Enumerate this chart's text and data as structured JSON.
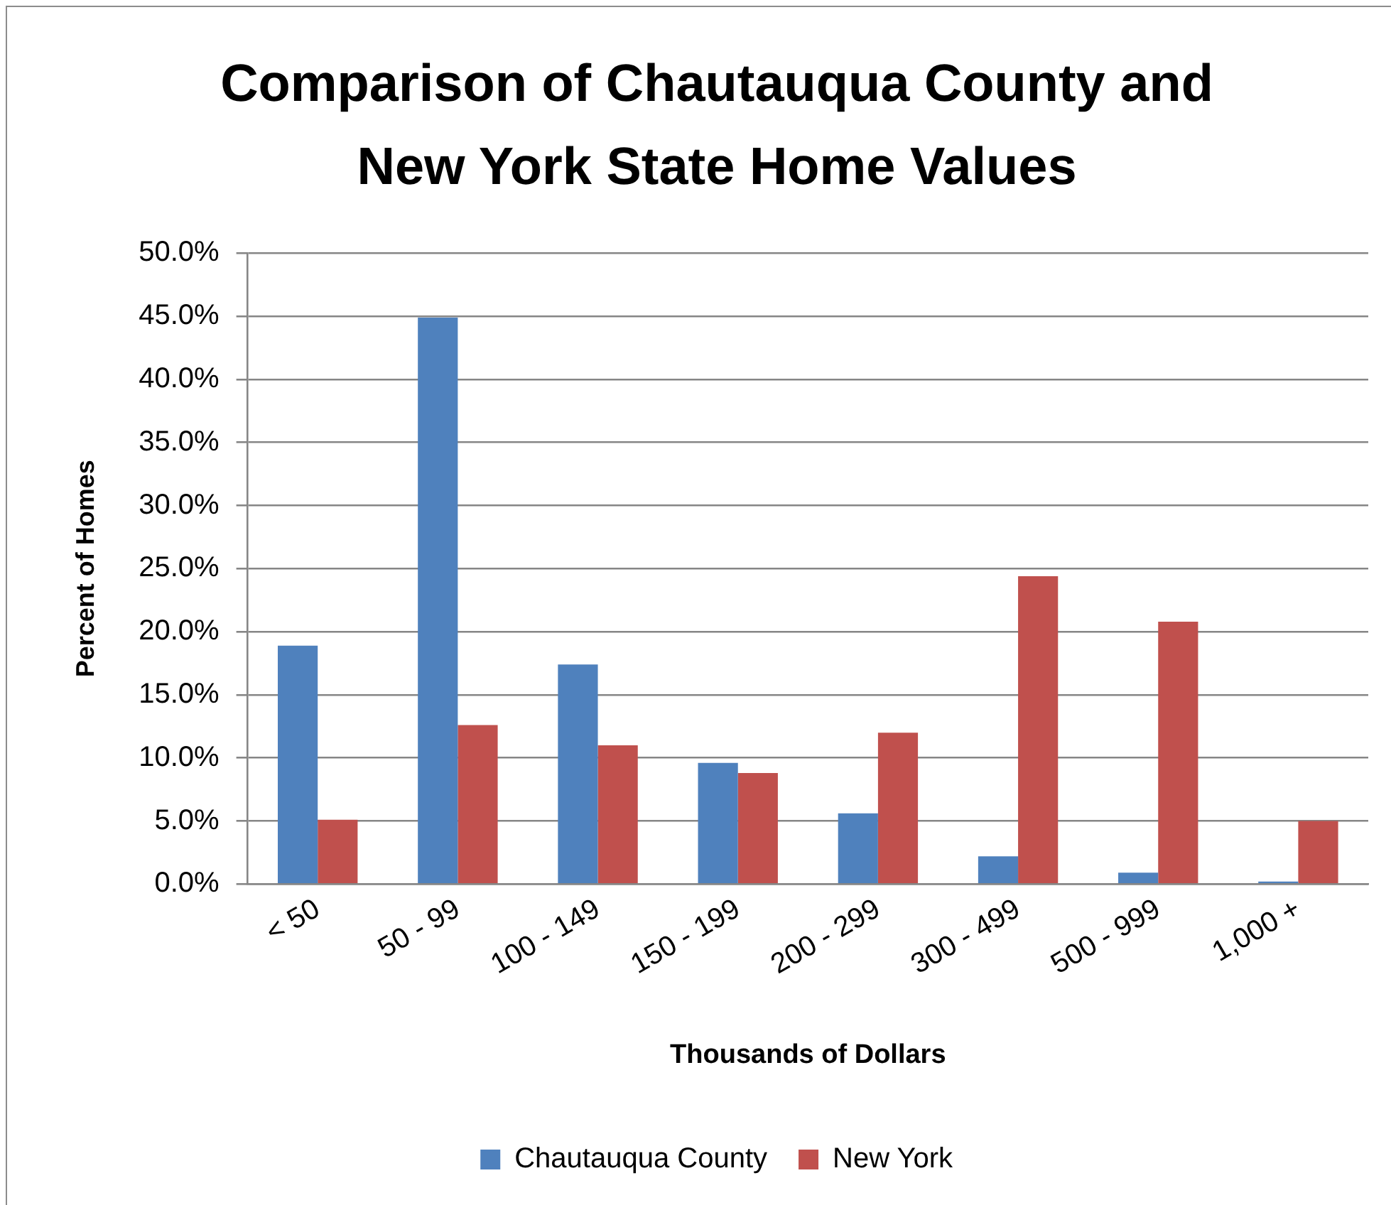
{
  "chart_data": {
    "type": "bar",
    "title": "Comparison of Chautauqua County and New York State Home Values",
    "xlabel": "Thousands of Dollars",
    "ylabel": "Percent of Homes",
    "categories": [
      "< 50",
      "50 - 99",
      "100 - 149",
      "150 - 199",
      "200 - 299",
      "300 - 499",
      "500 - 999",
      "1,000 +"
    ],
    "series": [
      {
        "name": "Chautauqua County",
        "color": "#4f81bd",
        "values": [
          18.9,
          44.9,
          17.4,
          9.6,
          5.6,
          2.2,
          0.9,
          0.2
        ]
      },
      {
        "name": "New York",
        "color": "#c0504d",
        "values": [
          5.1,
          12.6,
          11.0,
          8.8,
          12.0,
          24.4,
          20.8,
          5.0
        ]
      }
    ],
    "ylim": [
      0,
      50
    ],
    "yticks": [
      {
        "value": 0,
        "label": "0.0%"
      },
      {
        "value": 5,
        "label": "5.0%"
      },
      {
        "value": 10,
        "label": "10.0%"
      },
      {
        "value": 15,
        "label": "15.0%"
      },
      {
        "value": 20,
        "label": "20.0%"
      },
      {
        "value": 25,
        "label": "25.0%"
      },
      {
        "value": 30,
        "label": "30.0%"
      },
      {
        "value": 35,
        "label": "35.0%"
      },
      {
        "value": 40,
        "label": "40.0%"
      },
      {
        "value": 45,
        "label": "45.0%"
      },
      {
        "value": 50,
        "label": "50.0%"
      }
    ],
    "grid": "y",
    "legend": "bottom"
  }
}
